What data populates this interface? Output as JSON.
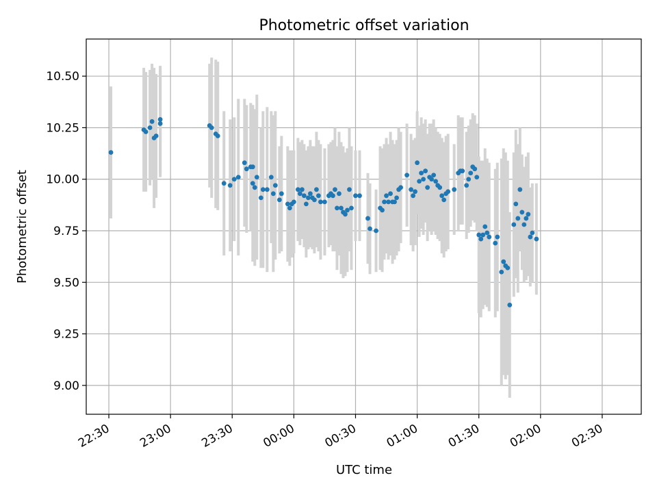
{
  "chart_data": {
    "type": "scatter",
    "title": "Photometric offset variation",
    "xlabel": "UTC time",
    "ylabel": "Photometric offset",
    "x_axis": {
      "kind": "time",
      "start": "22:19",
      "end": "02:49"
    },
    "ylim": [
      8.86,
      10.68
    ],
    "grid": true,
    "x_ticks": [
      "22:30",
      "23:00",
      "23:30",
      "00:00",
      "00:30",
      "01:00",
      "01:30",
      "02:00",
      "02:30"
    ],
    "y_ticks": [
      "9.00",
      "9.25",
      "9.50",
      "9.75",
      "10.00",
      "10.25",
      "10.50"
    ],
    "colors": {
      "points": "#1f77b4",
      "errorbars": "#d3d3d3",
      "grid": "#b0b0b0"
    },
    "series": [
      {
        "points": [
          {
            "x": "22:31",
            "y": 10.13,
            "err": 0.32
          },
          {
            "x": "22:47",
            "y": 10.24,
            "err": 0.3
          },
          {
            "x": "22:48",
            "y": 10.23,
            "err": 0.29
          },
          {
            "x": "22:50",
            "y": 10.25,
            "err": 0.28
          },
          {
            "x": "22:51",
            "y": 10.28,
            "err": 0.28
          },
          {
            "x": "22:52",
            "y": 10.2,
            "err": 0.34
          },
          {
            "x": "22:53",
            "y": 10.21,
            "err": 0.3
          },
          {
            "x": "22:55",
            "y": 10.27,
            "err": 0.26
          },
          {
            "x": "22:55",
            "y": 10.29,
            "err": 0.26
          },
          {
            "x": "23:19",
            "y": 10.26,
            "err": 0.3
          },
          {
            "x": "23:20",
            "y": 10.25,
            "err": 0.34
          },
          {
            "x": "23:22",
            "y": 10.22,
            "err": 0.36
          },
          {
            "x": "23:23",
            "y": 10.21,
            "err": 0.36
          },
          {
            "x": "23:26",
            "y": 9.98,
            "err": 0.35
          },
          {
            "x": "23:29",
            "y": 9.97,
            "err": 0.32
          },
          {
            "x": "23:31",
            "y": 10.0,
            "err": 0.3
          },
          {
            "x": "23:33",
            "y": 10.01,
            "err": 0.38
          },
          {
            "x": "23:36",
            "y": 10.08,
            "err": 0.31
          },
          {
            "x": "23:37",
            "y": 10.05,
            "err": 0.31
          },
          {
            "x": "23:39",
            "y": 10.06,
            "err": 0.31
          },
          {
            "x": "23:40",
            "y": 10.06,
            "err": 0.3
          },
          {
            "x": "23:40",
            "y": 9.98,
            "err": 0.38
          },
          {
            "x": "23:41",
            "y": 9.96,
            "err": 0.38
          },
          {
            "x": "23:42",
            "y": 10.01,
            "err": 0.4
          },
          {
            "x": "23:44",
            "y": 9.91,
            "err": 0.34
          },
          {
            "x": "23:45",
            "y": 9.95,
            "err": 0.38
          },
          {
            "x": "23:47",
            "y": 9.95,
            "err": 0.4
          },
          {
            "x": "23:49",
            "y": 10.01,
            "err": 0.32
          },
          {
            "x": "23:50",
            "y": 9.93,
            "err": 0.38
          },
          {
            "x": "23:51",
            "y": 9.97,
            "err": 0.36
          },
          {
            "x": "23:53",
            "y": 9.9,
            "err": 0.26
          },
          {
            "x": "23:54",
            "y": 9.93,
            "err": 0.28
          },
          {
            "x": "23:57",
            "y": 9.88,
            "err": 0.28
          },
          {
            "x": "23:58",
            "y": 9.86,
            "err": 0.28
          },
          {
            "x": "23:59",
            "y": 9.88,
            "err": 0.26
          },
          {
            "x": "00:00",
            "y": 9.89,
            "err": 0.25
          },
          {
            "x": "00:02",
            "y": 9.95,
            "err": 0.25
          },
          {
            "x": "00:03",
            "y": 9.93,
            "err": 0.25
          },
          {
            "x": "00:04",
            "y": 9.95,
            "err": 0.24
          },
          {
            "x": "00:05",
            "y": 9.92,
            "err": 0.25
          },
          {
            "x": "00:06",
            "y": 9.88,
            "err": 0.26
          },
          {
            "x": "00:07",
            "y": 9.91,
            "err": 0.25
          },
          {
            "x": "00:08",
            "y": 9.93,
            "err": 0.26
          },
          {
            "x": "00:09",
            "y": 9.91,
            "err": 0.25
          },
          {
            "x": "00:10",
            "y": 9.9,
            "err": 0.26
          },
          {
            "x": "00:11",
            "y": 9.95,
            "err": 0.28
          },
          {
            "x": "00:12",
            "y": 9.92,
            "err": 0.27
          },
          {
            "x": "00:13",
            "y": 9.89,
            "err": 0.28
          },
          {
            "x": "00:15",
            "y": 9.89,
            "err": 0.26
          },
          {
            "x": "00:17",
            "y": 9.92,
            "err": 0.25
          },
          {
            "x": "00:18",
            "y": 9.93,
            "err": 0.25
          },
          {
            "x": "00:19",
            "y": 9.92,
            "err": 0.27
          },
          {
            "x": "00:20",
            "y": 9.95,
            "err": 0.3
          },
          {
            "x": "00:21",
            "y": 9.86,
            "err": 0.3
          },
          {
            "x": "00:22",
            "y": 9.93,
            "err": 0.3
          },
          {
            "x": "00:23",
            "y": 9.86,
            "err": 0.32
          },
          {
            "x": "00:24",
            "y": 9.84,
            "err": 0.32
          },
          {
            "x": "00:25",
            "y": 9.83,
            "err": 0.3
          },
          {
            "x": "00:26",
            "y": 9.85,
            "err": 0.3
          },
          {
            "x": "00:27",
            "y": 9.95,
            "err": 0.3
          },
          {
            "x": "00:28",
            "y": 9.86,
            "err": 0.3
          },
          {
            "x": "00:30",
            "y": 9.92,
            "err": 0.22
          },
          {
            "x": "00:32",
            "y": 9.92,
            "err": 0.22
          },
          {
            "x": "00:36",
            "y": 9.81,
            "err": 0.22
          },
          {
            "x": "00:37",
            "y": 9.76,
            "err": 0.22
          },
          {
            "x": "00:40",
            "y": 9.75,
            "err": 0.2
          },
          {
            "x": "00:42",
            "y": 9.86,
            "err": 0.3
          },
          {
            "x": "00:43",
            "y": 9.85,
            "err": 0.3
          },
          {
            "x": "00:44",
            "y": 9.89,
            "err": 0.28
          },
          {
            "x": "00:45",
            "y": 9.92,
            "err": 0.28
          },
          {
            "x": "00:46",
            "y": 9.89,
            "err": 0.28
          },
          {
            "x": "00:47",
            "y": 9.93,
            "err": 0.3
          },
          {
            "x": "00:48",
            "y": 9.89,
            "err": 0.3
          },
          {
            "x": "00:49",
            "y": 9.89,
            "err": 0.28
          },
          {
            "x": "00:50",
            "y": 9.91,
            "err": 0.28
          },
          {
            "x": "00:51",
            "y": 9.95,
            "err": 0.3
          },
          {
            "x": "00:52",
            "y": 9.96,
            "err": 0.27
          },
          {
            "x": "00:55",
            "y": 10.02,
            "err": 0.25
          },
          {
            "x": "00:57",
            "y": 9.95,
            "err": 0.27
          },
          {
            "x": "00:58",
            "y": 9.92,
            "err": 0.27
          },
          {
            "x": "00:59",
            "y": 9.94,
            "err": 0.26
          },
          {
            "x": "01:00",
            "y": 10.08,
            "err": 0.25
          },
          {
            "x": "01:01",
            "y": 9.99,
            "err": 0.27
          },
          {
            "x": "01:02",
            "y": 10.03,
            "err": 0.27
          },
          {
            "x": "01:03",
            "y": 10.0,
            "err": 0.27
          },
          {
            "x": "01:04",
            "y": 10.04,
            "err": 0.25
          },
          {
            "x": "01:05",
            "y": 9.96,
            "err": 0.26
          },
          {
            "x": "01:06",
            "y": 10.01,
            "err": 0.26
          },
          {
            "x": "01:07",
            "y": 10.0,
            "err": 0.27
          },
          {
            "x": "01:08",
            "y": 10.02,
            "err": 0.27
          },
          {
            "x": "01:09",
            "y": 9.99,
            "err": 0.26
          },
          {
            "x": "01:10",
            "y": 9.97,
            "err": 0.26
          },
          {
            "x": "01:11",
            "y": 9.96,
            "err": 0.26
          },
          {
            "x": "01:12",
            "y": 9.92,
            "err": 0.28
          },
          {
            "x": "01:13",
            "y": 9.9,
            "err": 0.28
          },
          {
            "x": "01:14",
            "y": 9.93,
            "err": 0.28
          },
          {
            "x": "01:15",
            "y": 9.94,
            "err": 0.28
          },
          {
            "x": "01:18",
            "y": 9.95,
            "err": 0.22
          },
          {
            "x": "01:20",
            "y": 10.03,
            "err": 0.28
          },
          {
            "x": "01:21",
            "y": 10.04,
            "err": 0.26
          },
          {
            "x": "01:22",
            "y": 10.04,
            "err": 0.26
          },
          {
            "x": "01:24",
            "y": 9.97,
            "err": 0.26
          },
          {
            "x": "01:25",
            "y": 10.0,
            "err": 0.26
          },
          {
            "x": "01:26",
            "y": 10.03,
            "err": 0.26
          },
          {
            "x": "01:27",
            "y": 10.06,
            "err": 0.26
          },
          {
            "x": "01:28",
            "y": 10.05,
            "err": 0.26
          },
          {
            "x": "01:29",
            "y": 10.01,
            "err": 0.26
          },
          {
            "x": "01:30",
            "y": 9.73,
            "err": 0.38
          },
          {
            "x": "01:31",
            "y": 9.71,
            "err": 0.38
          },
          {
            "x": "01:32",
            "y": 9.73,
            "err": 0.36
          },
          {
            "x": "01:33",
            "y": 9.77,
            "err": 0.38
          },
          {
            "x": "01:34",
            "y": 9.74,
            "err": 0.36
          },
          {
            "x": "01:35",
            "y": 9.72,
            "err": 0.36
          },
          {
            "x": "01:38",
            "y": 9.69,
            "err": 0.36
          },
          {
            "x": "01:39",
            "y": 9.72,
            "err": 0.36
          },
          {
            "x": "01:41",
            "y": 9.55,
            "err": 0.55
          },
          {
            "x": "01:42",
            "y": 9.6,
            "err": 0.55
          },
          {
            "x": "01:43",
            "y": 9.58,
            "err": 0.55
          },
          {
            "x": "01:44",
            "y": 9.57,
            "err": 0.52
          },
          {
            "x": "01:45",
            "y": 9.39,
            "err": 0.45
          },
          {
            "x": "01:47",
            "y": 9.78,
            "err": 0.35
          },
          {
            "x": "01:48",
            "y": 9.88,
            "err": 0.36
          },
          {
            "x": "01:49",
            "y": 9.81,
            "err": 0.36
          },
          {
            "x": "01:50",
            "y": 9.95,
            "err": 0.3
          },
          {
            "x": "01:51",
            "y": 9.84,
            "err": 0.28
          },
          {
            "x": "01:52",
            "y": 9.78,
            "err": 0.28
          },
          {
            "x": "01:53",
            "y": 9.81,
            "err": 0.3
          },
          {
            "x": "01:54",
            "y": 9.83,
            "err": 0.3
          },
          {
            "x": "01:55",
            "y": 9.72,
            "err": 0.24
          },
          {
            "x": "01:56",
            "y": 9.74,
            "err": 0.24
          },
          {
            "x": "01:58",
            "y": 9.71,
            "err": 0.27
          }
        ]
      }
    ]
  }
}
